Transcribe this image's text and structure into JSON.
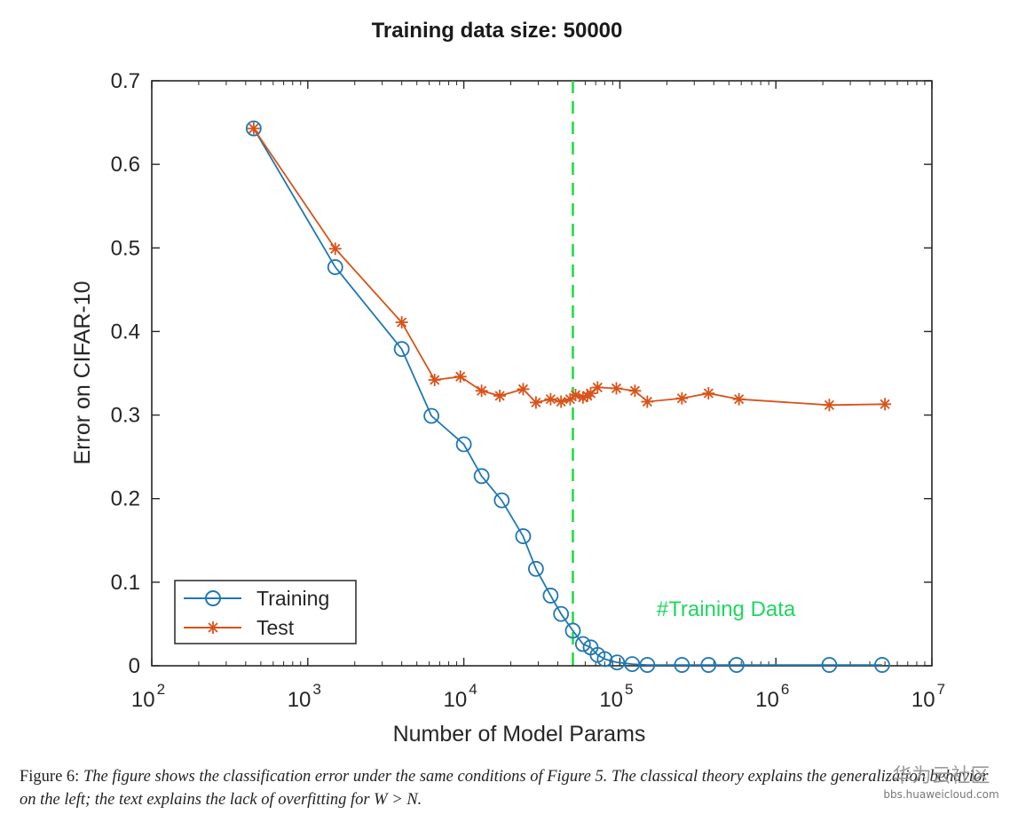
{
  "chart_data": {
    "type": "line",
    "title": "Training data size: 50000",
    "xlabel": "Number of Model Params",
    "ylabel": "Error on CIFAR-10",
    "xscale": "log",
    "xlim": [
      100,
      10000000
    ],
    "ylim": [
      0,
      0.7
    ],
    "x_ticks": [
      {
        "base": "10",
        "exp": "2"
      },
      {
        "base": "10",
        "exp": "3"
      },
      {
        "base": "10",
        "exp": "4"
      },
      {
        "base": "10",
        "exp": "5"
      },
      {
        "base": "10",
        "exp": "6"
      },
      {
        "base": "10",
        "exp": "7"
      }
    ],
    "y_ticks": [
      "0",
      "0.1",
      "0.2",
      "0.3",
      "0.4",
      "0.5",
      "0.6",
      "0.7"
    ],
    "series": [
      {
        "name": "Training",
        "color": "#1f77b4",
        "marker": "circle",
        "points": [
          [
            450,
            0.643
          ],
          [
            1500,
            0.477
          ],
          [
            4000,
            0.379
          ],
          [
            6200,
            0.299
          ],
          [
            10000,
            0.265
          ],
          [
            13000,
            0.227
          ],
          [
            17500,
            0.198
          ],
          [
            24000,
            0.155
          ],
          [
            29000,
            0.116
          ],
          [
            36000,
            0.084
          ],
          [
            42000,
            0.062
          ],
          [
            50000,
            0.042
          ],
          [
            58000,
            0.026
          ],
          [
            65000,
            0.022
          ],
          [
            72000,
            0.013
          ],
          [
            80000,
            0.008
          ],
          [
            96000,
            0.004
          ],
          [
            120000,
            0.002
          ],
          [
            150000,
            0.001
          ],
          [
            250000,
            0.001
          ],
          [
            370000,
            0.001
          ],
          [
            560000,
            0.001
          ],
          [
            2200000,
            0.001
          ],
          [
            4800000,
            0.001
          ]
        ]
      },
      {
        "name": "Test",
        "color": "#d95319",
        "marker": "star",
        "points": [
          [
            450,
            0.643
          ],
          [
            1500,
            0.499
          ],
          [
            4000,
            0.411
          ],
          [
            6500,
            0.342
          ],
          [
            9500,
            0.346
          ],
          [
            13000,
            0.329
          ],
          [
            17000,
            0.323
          ],
          [
            24000,
            0.331
          ],
          [
            29000,
            0.315
          ],
          [
            36000,
            0.319
          ],
          [
            42000,
            0.316
          ],
          [
            48000,
            0.319
          ],
          [
            52000,
            0.324
          ],
          [
            58000,
            0.321
          ],
          [
            62000,
            0.323
          ],
          [
            65000,
            0.326
          ],
          [
            72000,
            0.333
          ],
          [
            95000,
            0.332
          ],
          [
            125000,
            0.329
          ],
          [
            150000,
            0.316
          ],
          [
            250000,
            0.32
          ],
          [
            370000,
            0.326
          ],
          [
            580000,
            0.319
          ],
          [
            2200000,
            0.312
          ],
          [
            5000000,
            0.313
          ]
        ]
      }
    ],
    "reference_line": {
      "x": 50000,
      "label": "#Training Data",
      "color": "#22dd44",
      "style": "dashed"
    },
    "legend": {
      "placement": "bottom-left",
      "entries": [
        "Training",
        "Test"
      ]
    },
    "grid": false
  },
  "caption": {
    "label": "Figure 6:",
    "text": "The figure shows the classification error under the same conditions of Figure 5. The classical theory explains the generalization behavior on the left; the text explains the lack of overfitting for W > N."
  },
  "watermark": {
    "name": "华为云社区",
    "url": "bbs.huaweicloud.com"
  }
}
